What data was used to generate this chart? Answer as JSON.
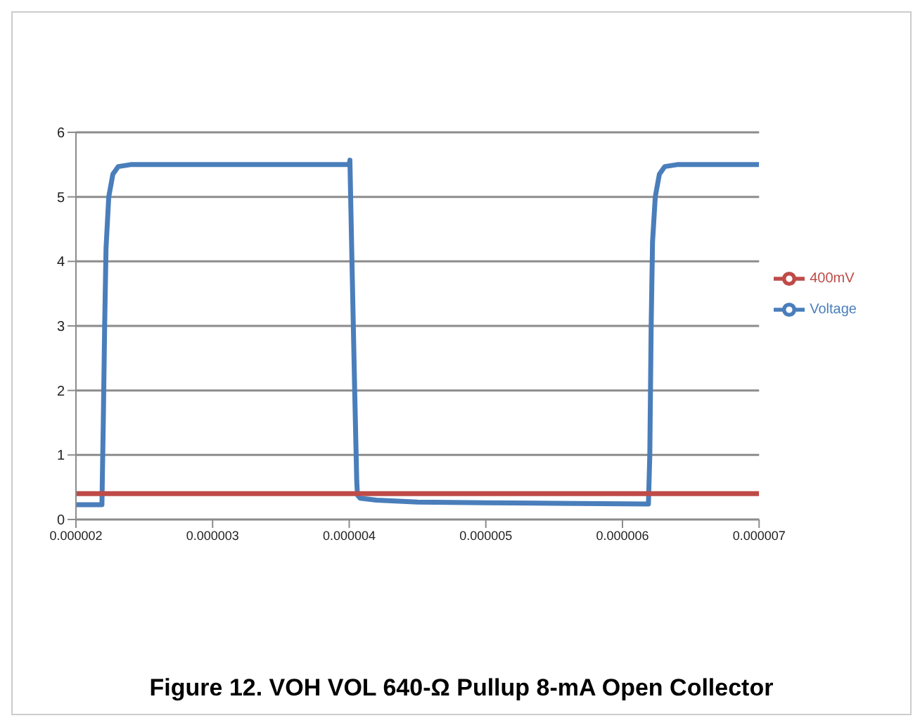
{
  "chart_data": {
    "type": "line",
    "title": "Figure 12. VOH VOL 640-Ω Pullup 8-mA Open Collector",
    "series": [
      {
        "name": "Voltage",
        "color": "#4a7ebb",
        "x": [
          2e-06,
          2.19e-06,
          2.2e-06,
          2.21e-06,
          2.22e-06,
          2.24e-06,
          2.27e-06,
          2.31e-06,
          2.4e-06,
          4e-06,
          4.005e-06,
          4.02e-06,
          4.04e-06,
          4.055e-06,
          4.06e-06,
          4.08e-06,
          4.2e-06,
          4.5e-06,
          5e-06,
          5.5e-06,
          6.19e-06,
          6.2e-06,
          6.21e-06,
          6.22e-06,
          6.24e-06,
          6.27e-06,
          6.31e-06,
          6.4e-06,
          7e-06
        ],
        "values": [
          0.23,
          0.23,
          1.5,
          3.0,
          4.2,
          5.0,
          5.35,
          5.47,
          5.5,
          5.5,
          5.57,
          4.0,
          2.0,
          0.6,
          0.38,
          0.33,
          0.3,
          0.27,
          0.26,
          0.25,
          0.24,
          1.0,
          3.0,
          4.3,
          5.0,
          5.35,
          5.47,
          5.5,
          5.5
        ]
      },
      {
        "name": "400mV",
        "color": "#be4b48",
        "x": [
          2e-06,
          7e-06
        ],
        "values": [
          0.4,
          0.4
        ]
      }
    ],
    "xlim": [
      2e-06,
      7e-06
    ],
    "xticks": [
      {
        "value": 2e-06,
        "label": "0.000002"
      },
      {
        "value": 3e-06,
        "label": "0.000003"
      },
      {
        "value": 4e-06,
        "label": "0.000004"
      },
      {
        "value": 5e-06,
        "label": "0.000005"
      },
      {
        "value": 6e-06,
        "label": "0.000006"
      },
      {
        "value": 7e-06,
        "label": "0.000007"
      }
    ],
    "ylim": [
      0,
      6
    ],
    "yticks": [
      0,
      1,
      2,
      3,
      4,
      5,
      6
    ],
    "grid": "y",
    "legend": "right",
    "marker": "none",
    "line_style": "solid"
  }
}
